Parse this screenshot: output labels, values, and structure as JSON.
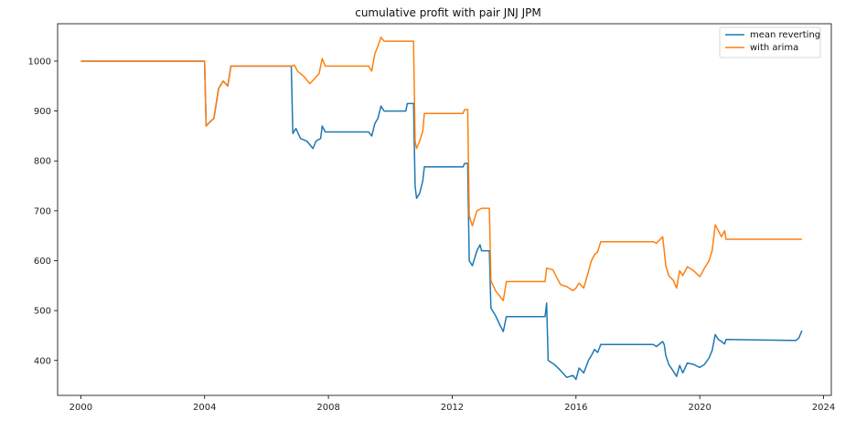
{
  "chart_data": {
    "type": "line",
    "title": "cumulative profit with pair JNJ JPM",
    "xlabel": "",
    "ylabel": "",
    "xlim": [
      1999.25,
      2024.25
    ],
    "ylim": [
      330,
      1075
    ],
    "xticks": [
      2000,
      2004,
      2008,
      2012,
      2016,
      2020,
      2024
    ],
    "xtick_labels": [
      "2000",
      "2004",
      "2008",
      "2012",
      "2016",
      "2020",
      "2024"
    ],
    "yticks": [
      400,
      500,
      600,
      700,
      800,
      900,
      1000
    ],
    "ytick_labels": [
      "400",
      "500",
      "600",
      "700",
      "800",
      "900",
      "1000"
    ],
    "grid": false,
    "legend_position": "upper right",
    "colors": {
      "mean_reverting": "#1f77b4",
      "with_arima": "#ff7f0e"
    },
    "series": [
      {
        "name": "mean reverting",
        "color": "#1f77b4",
        "points": [
          [
            2000.0,
            1000
          ],
          [
            2004.0,
            1000
          ],
          [
            2004.05,
            870
          ],
          [
            2004.2,
            880
          ],
          [
            2004.3,
            885
          ],
          [
            2004.45,
            945
          ],
          [
            2004.6,
            960
          ],
          [
            2004.75,
            950
          ],
          [
            2004.85,
            990
          ],
          [
            2006.8,
            990
          ],
          [
            2006.85,
            855
          ],
          [
            2006.95,
            865
          ],
          [
            2007.1,
            845
          ],
          [
            2007.3,
            840
          ],
          [
            2007.5,
            825
          ],
          [
            2007.6,
            840
          ],
          [
            2007.75,
            845
          ],
          [
            2007.8,
            870
          ],
          [
            2007.9,
            858
          ],
          [
            2009.3,
            858
          ],
          [
            2009.4,
            850
          ],
          [
            2009.5,
            875
          ],
          [
            2009.6,
            885
          ],
          [
            2009.7,
            910
          ],
          [
            2009.8,
            900
          ],
          [
            2010.5,
            900
          ],
          [
            2010.55,
            915
          ],
          [
            2010.75,
            915
          ],
          [
            2010.8,
            750
          ],
          [
            2010.85,
            725
          ],
          [
            2010.95,
            735
          ],
          [
            2011.05,
            760
          ],
          [
            2011.1,
            788
          ],
          [
            2012.35,
            788
          ],
          [
            2012.4,
            795
          ],
          [
            2012.5,
            795
          ],
          [
            2012.55,
            600
          ],
          [
            2012.65,
            590
          ],
          [
            2012.8,
            620
          ],
          [
            2012.9,
            632
          ],
          [
            2012.95,
            620
          ],
          [
            2013.2,
            620
          ],
          [
            2013.25,
            505
          ],
          [
            2013.4,
            490
          ],
          [
            2013.55,
            470
          ],
          [
            2013.65,
            458
          ],
          [
            2013.75,
            488
          ],
          [
            2015.0,
            488
          ],
          [
            2015.05,
            515
          ],
          [
            2015.1,
            400
          ],
          [
            2015.3,
            392
          ],
          [
            2015.5,
            380
          ],
          [
            2015.7,
            366
          ],
          [
            2015.9,
            370
          ],
          [
            2016.0,
            362
          ],
          [
            2016.1,
            385
          ],
          [
            2016.25,
            375
          ],
          [
            2016.4,
            400
          ],
          [
            2016.5,
            410
          ],
          [
            2016.6,
            422
          ],
          [
            2016.7,
            416
          ],
          [
            2016.8,
            432
          ],
          [
            2018.5,
            432
          ],
          [
            2018.6,
            428
          ],
          [
            2018.8,
            438
          ],
          [
            2018.85,
            432
          ],
          [
            2018.9,
            410
          ],
          [
            2019.0,
            392
          ],
          [
            2019.15,
            378
          ],
          [
            2019.25,
            368
          ],
          [
            2019.35,
            390
          ],
          [
            2019.45,
            375
          ],
          [
            2019.6,
            395
          ],
          [
            2019.8,
            392
          ],
          [
            2020.0,
            386
          ],
          [
            2020.15,
            392
          ],
          [
            2020.3,
            405
          ],
          [
            2020.4,
            420
          ],
          [
            2020.5,
            452
          ],
          [
            2020.6,
            442
          ],
          [
            2020.7,
            438
          ],
          [
            2020.8,
            433
          ],
          [
            2020.85,
            442
          ],
          [
            2023.1,
            440
          ],
          [
            2023.2,
            445
          ],
          [
            2023.3,
            460
          ]
        ]
      },
      {
        "name": "with arima",
        "color": "#ff7f0e",
        "points": [
          [
            2000.0,
            1000
          ],
          [
            2004.0,
            1000
          ],
          [
            2004.05,
            870
          ],
          [
            2004.2,
            880
          ],
          [
            2004.3,
            885
          ],
          [
            2004.45,
            945
          ],
          [
            2004.6,
            960
          ],
          [
            2004.75,
            950
          ],
          [
            2004.85,
            990
          ],
          [
            2006.8,
            990
          ],
          [
            2006.9,
            992
          ],
          [
            2007.0,
            980
          ],
          [
            2007.2,
            970
          ],
          [
            2007.4,
            955
          ],
          [
            2007.55,
            965
          ],
          [
            2007.7,
            975
          ],
          [
            2007.8,
            1005
          ],
          [
            2007.9,
            990
          ],
          [
            2009.3,
            990
          ],
          [
            2009.4,
            980
          ],
          [
            2009.5,
            1015
          ],
          [
            2009.6,
            1030
          ],
          [
            2009.7,
            1048
          ],
          [
            2009.8,
            1040
          ],
          [
            2010.75,
            1040
          ],
          [
            2010.8,
            840
          ],
          [
            2010.85,
            825
          ],
          [
            2010.95,
            840
          ],
          [
            2011.05,
            860
          ],
          [
            2011.1,
            895
          ],
          [
            2012.35,
            895
          ],
          [
            2012.4,
            903
          ],
          [
            2012.5,
            903
          ],
          [
            2012.55,
            690
          ],
          [
            2012.65,
            670
          ],
          [
            2012.8,
            700
          ],
          [
            2012.95,
            705
          ],
          [
            2013.2,
            705
          ],
          [
            2013.25,
            560
          ],
          [
            2013.4,
            540
          ],
          [
            2013.55,
            528
          ],
          [
            2013.65,
            520
          ],
          [
            2013.75,
            558
          ],
          [
            2015.0,
            558
          ],
          [
            2015.05,
            585
          ],
          [
            2015.25,
            582
          ],
          [
            2015.5,
            552
          ],
          [
            2015.7,
            548
          ],
          [
            2015.9,
            540
          ],
          [
            2016.0,
            545
          ],
          [
            2016.1,
            555
          ],
          [
            2016.25,
            545
          ],
          [
            2016.4,
            578
          ],
          [
            2016.5,
            600
          ],
          [
            2016.6,
            612
          ],
          [
            2016.7,
            618
          ],
          [
            2016.8,
            638
          ],
          [
            2018.5,
            638
          ],
          [
            2018.6,
            635
          ],
          [
            2018.8,
            648
          ],
          [
            2018.85,
            620
          ],
          [
            2018.9,
            590
          ],
          [
            2019.0,
            570
          ],
          [
            2019.15,
            560
          ],
          [
            2019.25,
            545
          ],
          [
            2019.35,
            580
          ],
          [
            2019.45,
            570
          ],
          [
            2019.6,
            588
          ],
          [
            2019.8,
            580
          ],
          [
            2020.0,
            568
          ],
          [
            2020.15,
            585
          ],
          [
            2020.3,
            600
          ],
          [
            2020.4,
            620
          ],
          [
            2020.5,
            672
          ],
          [
            2020.6,
            660
          ],
          [
            2020.7,
            648
          ],
          [
            2020.8,
            660
          ],
          [
            2020.85,
            643
          ],
          [
            2023.3,
            643
          ]
        ]
      }
    ]
  }
}
